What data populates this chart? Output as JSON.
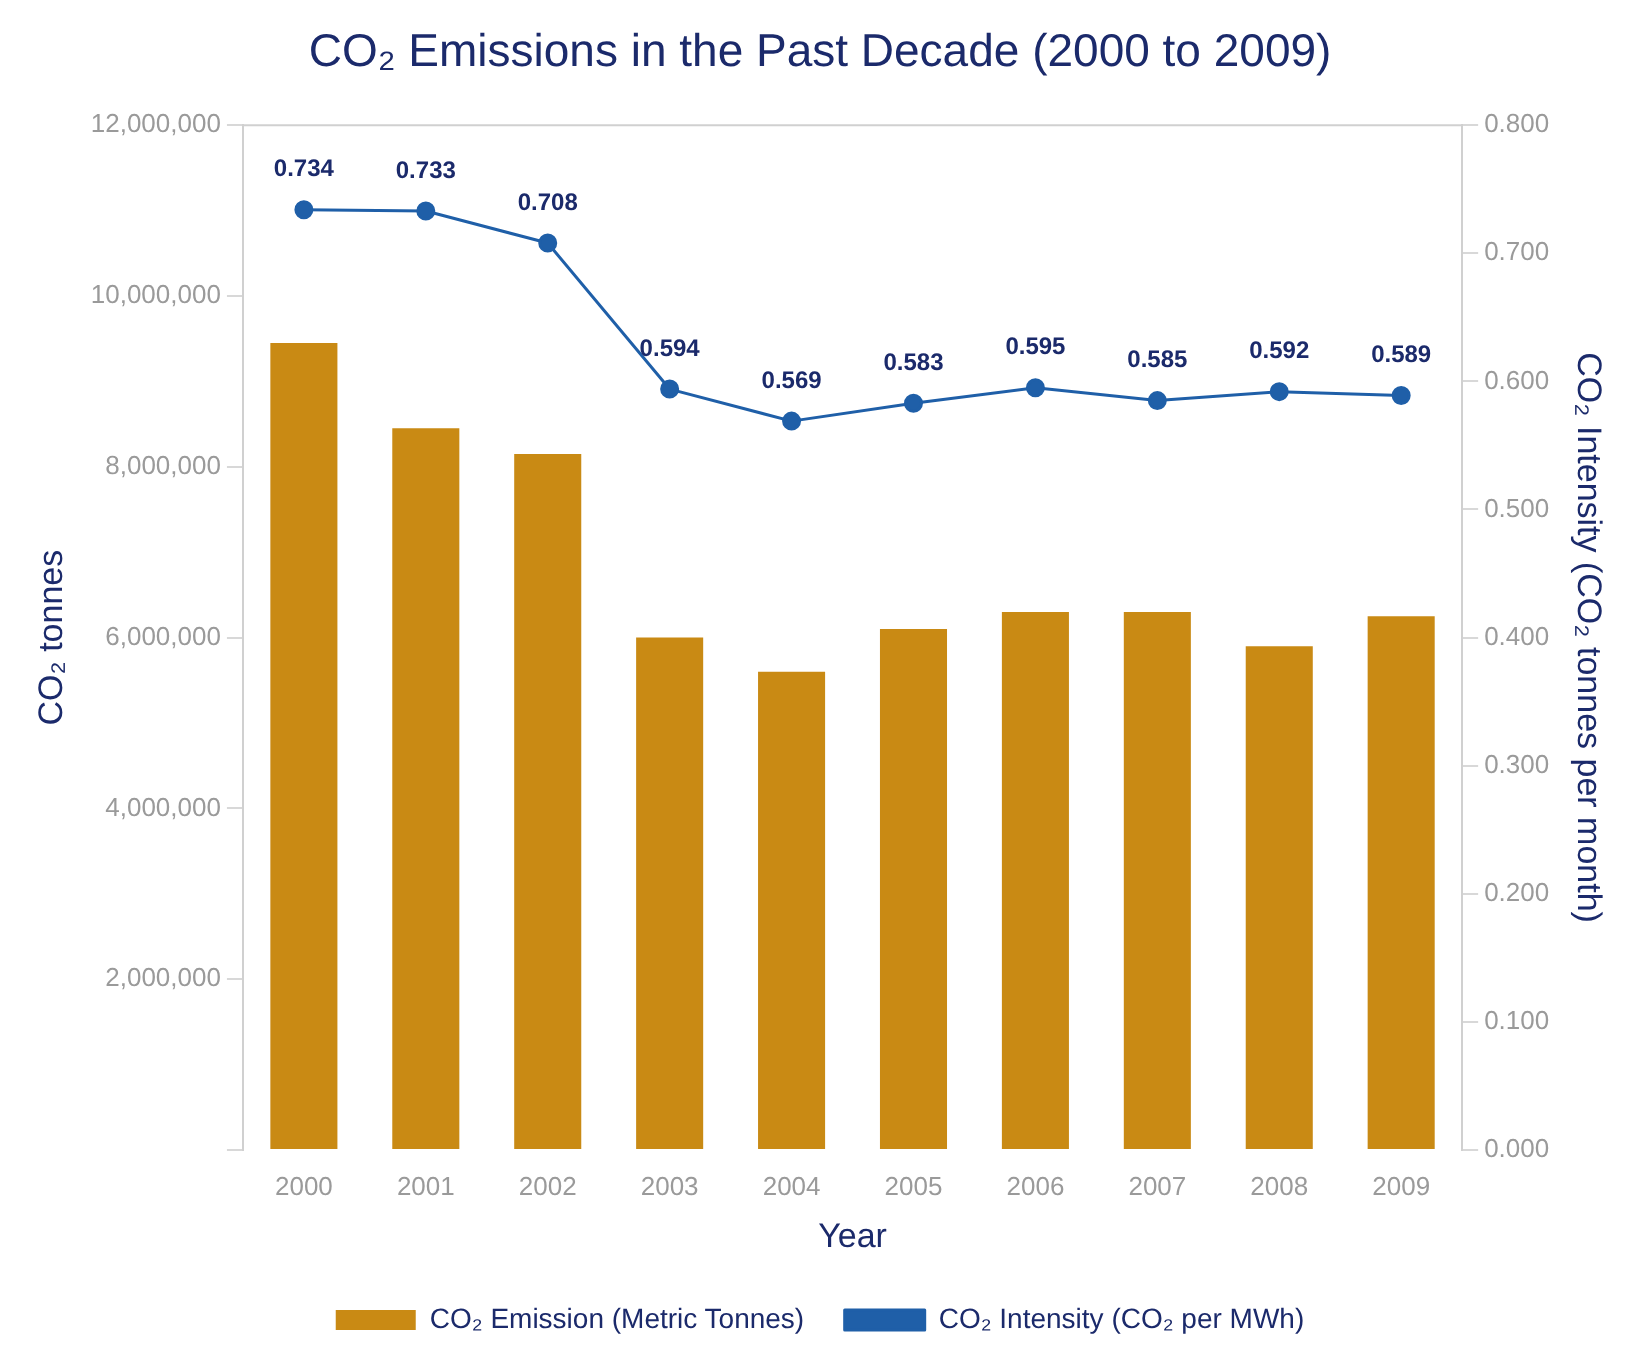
{
  "chart_data": {
    "type": "bar",
    "title": "CO₂ Emissions in the Past Decade (2000 to 2009)",
    "xlabel": "Year",
    "ylabel": "CO₂ tonnes",
    "y2label": "CO₂ Intensity (CO₂ tonnes per month)",
    "categories": [
      "2000",
      "2001",
      "2002",
      "2003",
      "2004",
      "2005",
      "2006",
      "2007",
      "2008",
      "2009"
    ],
    "series": [
      {
        "name": "CO₂ Emission (Metric Tonnes)",
        "color": "#c98a14",
        "values": [
          9450000,
          8450000,
          8150000,
          6000000,
          5600000,
          6100000,
          6300000,
          6300000,
          5900000,
          6250000
        ]
      },
      {
        "name": "CO₂ Intensity (CO₂ per MWh)",
        "type": "line",
        "axis": "y2",
        "color": "#1f5fa8",
        "marker": "circle",
        "values": [
          0.734,
          0.733,
          0.708,
          0.594,
          0.569,
          0.583,
          0.595,
          0.585,
          0.592,
          0.589
        ],
        "value_labels": [
          "0.734",
          "0.733",
          "0.708",
          "0.594",
          "0.569",
          "0.583",
          "0.595",
          "0.585",
          "0.592",
          "0.589"
        ]
      }
    ],
    "ylim": [
      0,
      12000000
    ],
    "yticks": [
      {
        "value": 0,
        "label": null
      },
      {
        "value": 2000000,
        "label": "2,000,000"
      },
      {
        "value": 4000000,
        "label": "4,000,000"
      },
      {
        "value": 6000000,
        "label": "6,000,000"
      },
      {
        "value": 8000000,
        "label": "8,000,000"
      },
      {
        "value": 10000000,
        "label": "10,000,000"
      },
      {
        "value": 12000000,
        "label": "12,000,000"
      }
    ],
    "y2lim": [
      0,
      0.8
    ],
    "y2ticks": [
      {
        "value": 0,
        "label": "0.000"
      },
      {
        "value": 0.1,
        "label": "0.100"
      },
      {
        "value": 0.2,
        "label": "0.200"
      },
      {
        "value": 0.3,
        "label": "0.300"
      },
      {
        "value": 0.4,
        "label": "0.400"
      },
      {
        "value": 0.5,
        "label": "0.500"
      },
      {
        "value": 0.6,
        "label": "0.600"
      },
      {
        "value": 0.7,
        "label": "0.700"
      },
      {
        "value": 0.8,
        "label": "0.800"
      }
    ],
    "grid": false,
    "legend": "bottom"
  }
}
